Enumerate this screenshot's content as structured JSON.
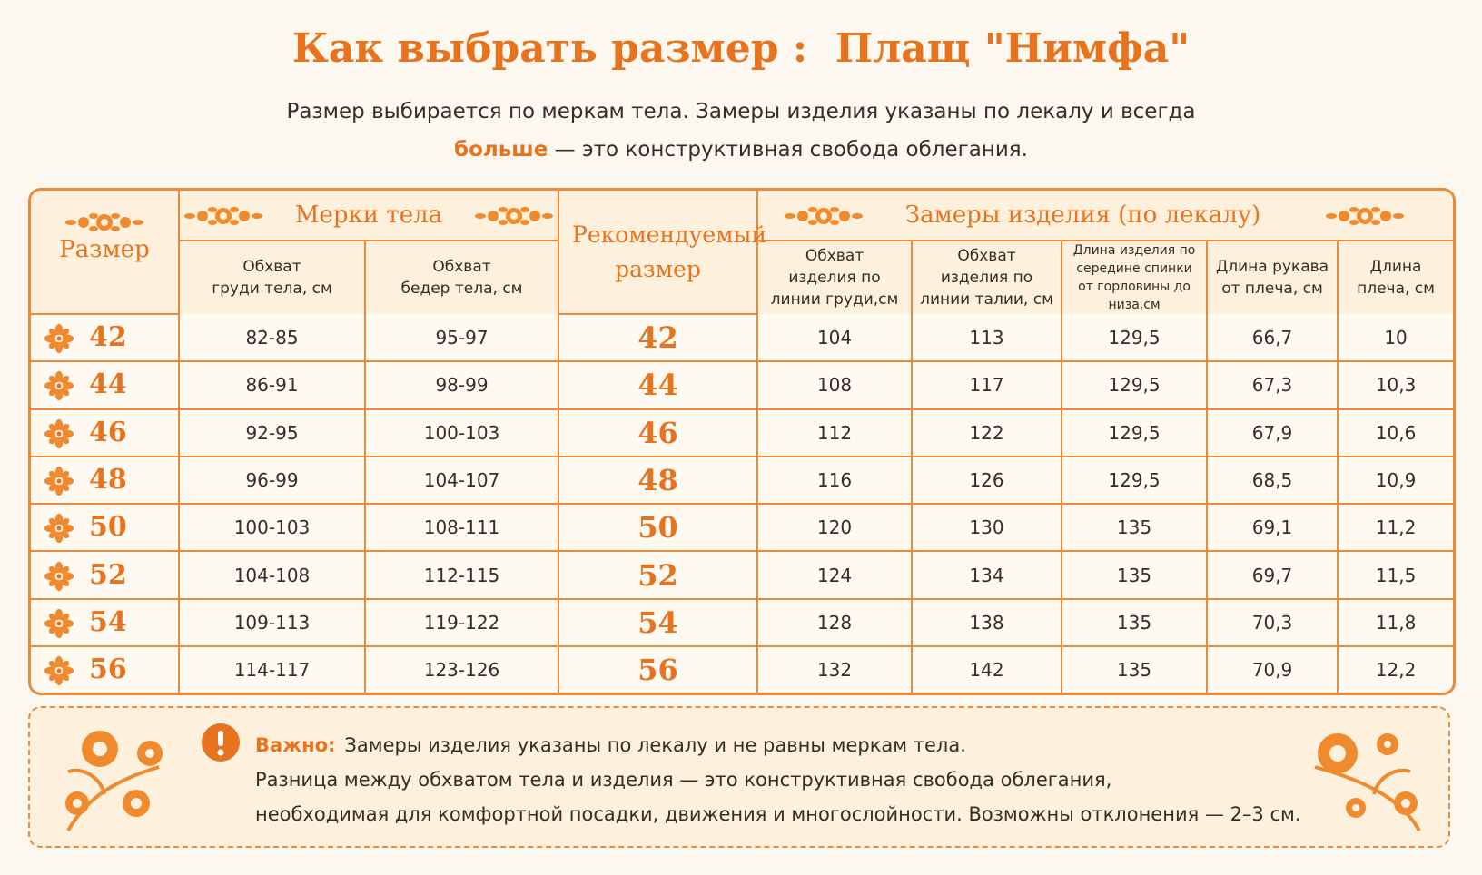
{
  "header": {
    "title": "Как выбрать размер :  Плащ \"Нимфа\"",
    "subtitle": [
      "Размер выбирается по меркам тела. Замеры изделия указаны по лекалу и всегда",
      "больше",
      "— это конструктивная свобода облегания."
    ]
  },
  "table": {
    "groups": [
      "Размер",
      "Мерки тела",
      "Рекомендуемый размер",
      "Замеры изделия (по лекалу)"
    ],
    "columns": [
      "Обхват\nгруди тела, см",
      "Обхват\nбедер тела, см",
      "Обхват\nизделия по\nлинии груди,см",
      "Обхват\nизделия по\nлинии талии, см",
      "Длина изделия по\nсередине спинки\nот горловины до\nниза,см",
      "Длина рукава\nот плеча, см",
      "Длина\nплеча, см"
    ],
    "rows": [
      [
        "42",
        "82-85",
        "95-97",
        "42",
        "104",
        "113",
        "129,5",
        "66,7",
        "10"
      ],
      [
        "44",
        "86-91",
        "98-99",
        "44",
        "108",
        "117",
        "129,5",
        "67,3",
        "10,3"
      ],
      [
        "46",
        "92-95",
        "100-103",
        "46",
        "112",
        "122",
        "129,5",
        "67,9",
        "10,6"
      ],
      [
        "48",
        "96-99",
        "104-107",
        "48",
        "116",
        "126",
        "129,5",
        "68,5",
        "10,9"
      ],
      [
        "50",
        "100-103",
        "108-111",
        "50",
        "120",
        "130",
        "135",
        "69,1",
        "11,2"
      ],
      [
        "52",
        "104-108",
        "112-115",
        "52",
        "124",
        "134",
        "135",
        "69,7",
        "11,5"
      ],
      [
        "54",
        "109-113",
        "119-122",
        "54",
        "128",
        "138",
        "135",
        "70,3",
        "11,8"
      ],
      [
        "56",
        "114-117",
        "123-126",
        "56",
        "132",
        "142",
        "135",
        "70,9",
        "12,2"
      ]
    ]
  },
  "note": {
    "label": "Важно:",
    "lines": [
      "Замеры изделия указаны по лекалу и не равны меркам тела.",
      "Разница между обхватом тела и изделия — это конструктивная свобода облегания,",
      "необходимая для комфортной посадки, движения и многослойности. Возможны отклонения — 2–3 см."
    ]
  }
}
